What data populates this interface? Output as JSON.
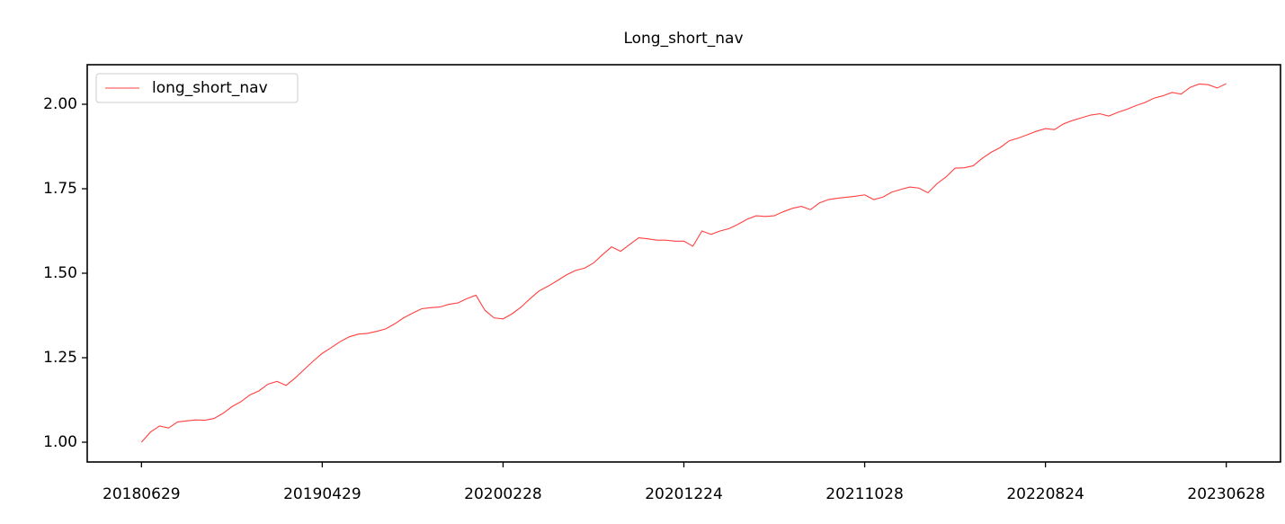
{
  "chart_data": {
    "type": "line",
    "title": "Long_short_nav",
    "categories": [
      "20180629",
      null,
      null,
      null,
      null,
      null,
      null,
      null,
      null,
      null,
      null,
      null,
      null,
      null,
      null,
      null,
      null,
      null,
      null,
      null,
      "20190429",
      null,
      null,
      null,
      null,
      null,
      null,
      null,
      null,
      null,
      null,
      null,
      null,
      null,
      null,
      null,
      null,
      null,
      null,
      null,
      "20200228",
      null,
      null,
      null,
      null,
      null,
      null,
      null,
      null,
      null,
      null,
      null,
      null,
      null,
      null,
      null,
      null,
      null,
      null,
      null,
      "20201224",
      null,
      null,
      null,
      null,
      null,
      null,
      null,
      null,
      null,
      null,
      null,
      null,
      null,
      null,
      null,
      null,
      null,
      null,
      null,
      "20211028",
      null,
      null,
      null,
      null,
      null,
      null,
      null,
      null,
      null,
      null,
      null,
      null,
      null,
      null,
      null,
      null,
      null,
      null,
      null,
      "20220824",
      null,
      null,
      null,
      null,
      null,
      null,
      null,
      null,
      null,
      null,
      null,
      null,
      null,
      null,
      null,
      null,
      null,
      null,
      null,
      "20230628"
    ],
    "series": [
      {
        "name": "long_short_nav",
        "color": "#ff4040",
        "values": [
          1.0,
          1.03,
          1.048,
          1.042,
          1.06,
          1.063,
          1.066,
          1.065,
          1.07,
          1.085,
          1.105,
          1.12,
          1.14,
          1.152,
          1.172,
          1.18,
          1.168,
          1.19,
          1.215,
          1.24,
          1.263,
          1.28,
          1.298,
          1.312,
          1.32,
          1.322,
          1.328,
          1.335,
          1.35,
          1.368,
          1.382,
          1.395,
          1.398,
          1.4,
          1.408,
          1.412,
          1.425,
          1.435,
          1.39,
          1.368,
          1.365,
          1.38,
          1.4,
          1.425,
          1.448,
          1.462,
          1.478,
          1.495,
          1.508,
          1.515,
          1.53,
          1.555,
          1.578,
          1.565,
          1.585,
          1.605,
          1.602,
          1.598,
          1.598,
          1.595,
          1.595,
          1.58,
          1.625,
          1.615,
          1.625,
          1.632,
          1.645,
          1.66,
          1.67,
          1.668,
          1.67,
          1.682,
          1.692,
          1.698,
          1.688,
          1.708,
          1.718,
          1.722,
          1.725,
          1.728,
          1.732,
          1.718,
          1.725,
          1.74,
          1.748,
          1.755,
          1.752,
          1.738,
          1.765,
          1.785,
          1.811,
          1.812,
          1.818,
          1.84,
          1.858,
          1.872,
          1.892,
          1.9,
          1.91,
          1.92,
          1.928,
          1.925,
          1.942,
          1.952,
          1.96,
          1.968,
          1.972,
          1.965,
          1.976,
          1.985,
          1.996,
          2.005,
          2.018,
          2.025,
          2.035,
          2.03,
          2.05,
          2.06,
          2.058,
          2.048,
          2.061
        ]
      }
    ],
    "ylim": [
      0.9415,
      2.117
    ],
    "yticks": [
      {
        "value": 1,
        "label": "1.00"
      },
      {
        "value": 1.25,
        "label": "1.25"
      },
      {
        "value": 1.5,
        "label": "1.50"
      },
      {
        "value": 1.75,
        "label": "1.75"
      },
      {
        "value": 2,
        "label": "2.00"
      }
    ],
    "grid": false,
    "legend": "upper left"
  }
}
